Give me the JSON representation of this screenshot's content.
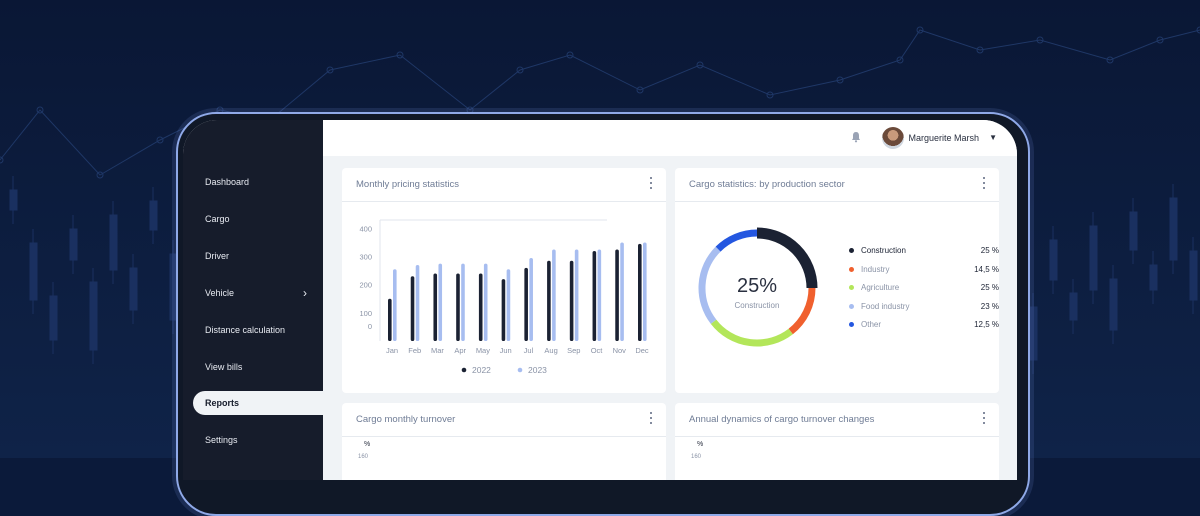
{
  "sidebar": {
    "items": [
      {
        "label": "Dashboard"
      },
      {
        "label": "Cargo"
      },
      {
        "label": "Driver"
      },
      {
        "label": "Vehicle",
        "chevron": "chevron-right-icon"
      },
      {
        "label": "Distance calculation"
      },
      {
        "label": "View bills"
      },
      {
        "label": "Reports",
        "active": true
      },
      {
        "label": "Settings"
      }
    ]
  },
  "header": {
    "user_name": "Marguerite Marsh",
    "bell_icon": "bell-icon",
    "dropdown_icon": "caret-down-icon"
  },
  "cards": {
    "pricing": {
      "title": "Monthly pricing statistics"
    },
    "sector": {
      "title": "Cargo statistics: by production sector"
    },
    "turnover": {
      "title": "Cargo monthly turnover",
      "unit": "%",
      "first_tick": "160"
    },
    "dynamics": {
      "title": "Annual dynamics of cargo  turnover  changes",
      "unit": "%",
      "first_tick": "160"
    }
  },
  "colors": {
    "accent_dark": "#1b2233",
    "accent_light": "#a7bdf0",
    "orange": "#f0602e",
    "green": "#b3e65a",
    "blue": "#2457e0"
  },
  "chart_data": [
    {
      "type": "bar",
      "title": "Monthly pricing statistics",
      "categories": [
        "Jan",
        "Feb",
        "Mar",
        "Apr",
        "May",
        "Jun",
        "Jul",
        "Aug",
        "Sep",
        "Oct",
        "Nov",
        "Dec"
      ],
      "series": [
        {
          "name": "2022",
          "color": "#1b2233",
          "values": [
            150,
            230,
            240,
            240,
            240,
            220,
            260,
            285,
            285,
            320,
            325,
            345
          ]
        },
        {
          "name": "2023",
          "color": "#a7bdf0",
          "values": [
            255,
            270,
            275,
            275,
            275,
            255,
            295,
            325,
            325,
            325,
            350,
            350
          ]
        }
      ],
      "yticks": [
        "0",
        "100",
        "200",
        "300",
        "400"
      ],
      "ylim": [
        0,
        430
      ],
      "legend": "bottom",
      "grid": false
    },
    {
      "type": "pie",
      "title": "Cargo statistics: by production sector",
      "center_value": "25%",
      "center_label": "Construction",
      "slices": [
        {
          "name": "Construction",
          "value": 25,
          "label": "25 %",
          "color": "#1b2233"
        },
        {
          "name": "Industry",
          "value": 14.5,
          "label": "14,5 %",
          "color": "#f0602e"
        },
        {
          "name": "Agriculture",
          "value": 25,
          "label": "25 %",
          "color": "#b3e65a"
        },
        {
          "name": "Food industry",
          "value": 23,
          "label": "23 %",
          "color": "#a7bdf0"
        },
        {
          "name": "Other",
          "value": 12.5,
          "label": "12,5 %",
          "color": "#2457e0"
        }
      ]
    }
  ]
}
